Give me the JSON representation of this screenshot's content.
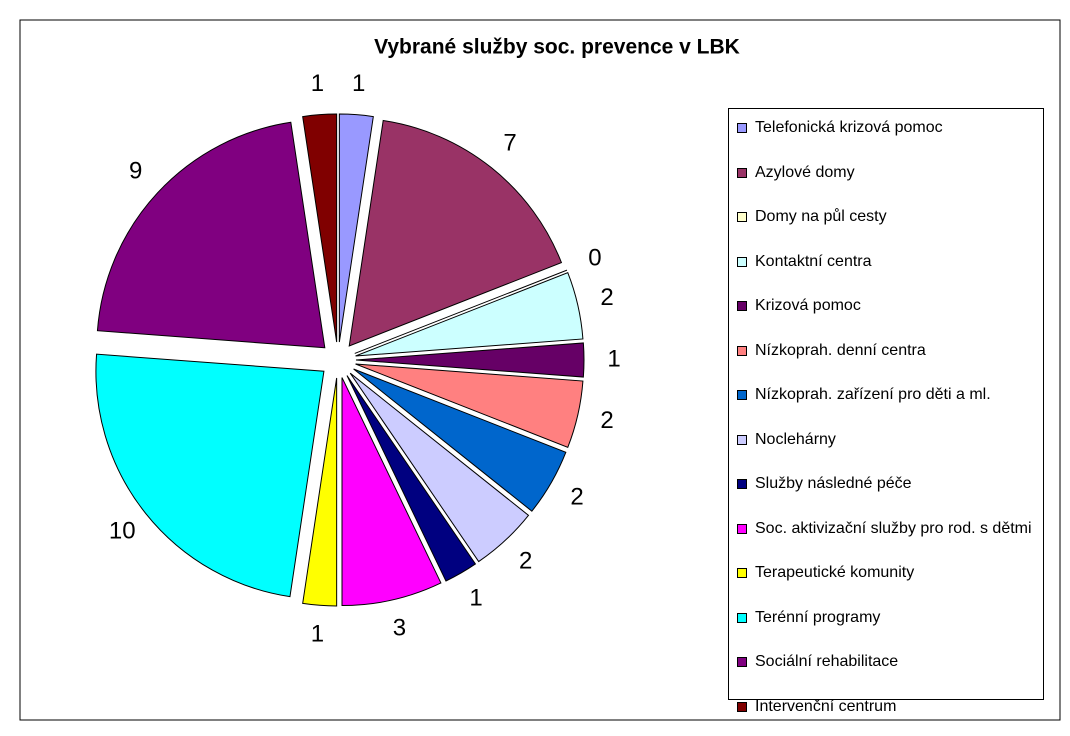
{
  "chart_data": {
    "type": "pie",
    "title": "Vybrané služby soc. prevence v LBK",
    "categories": [
      "Telefonická krizová pomoc",
      "Azylové domy",
      "Domy na půl cesty",
      "Kontaktní centra",
      "Krizová pomoc",
      "Nízkoprah. denní centra",
      "Nízkoprah. zařízení pro děti a ml.",
      "Noclehárny",
      "Služby následné péče",
      "Soc. aktivizační služby pro rod. s dětmi",
      "Terapeutické komunity",
      "Terénní programy",
      "Sociální rehabilitace",
      "Intervenční centrum"
    ],
    "values": [
      1,
      7,
      0,
      2,
      1,
      2,
      2,
      2,
      1,
      3,
      1,
      10,
      9,
      1
    ],
    "colors": [
      "#9999ff",
      "#993366",
      "#ffffcc",
      "#ccffff",
      "#660066",
      "#ff8080",
      "#0066cc",
      "#ccccff",
      "#000080",
      "#ff00ff",
      "#ffff00",
      "#00ffff",
      "#800080",
      "#800000"
    ],
    "legend": "right"
  }
}
